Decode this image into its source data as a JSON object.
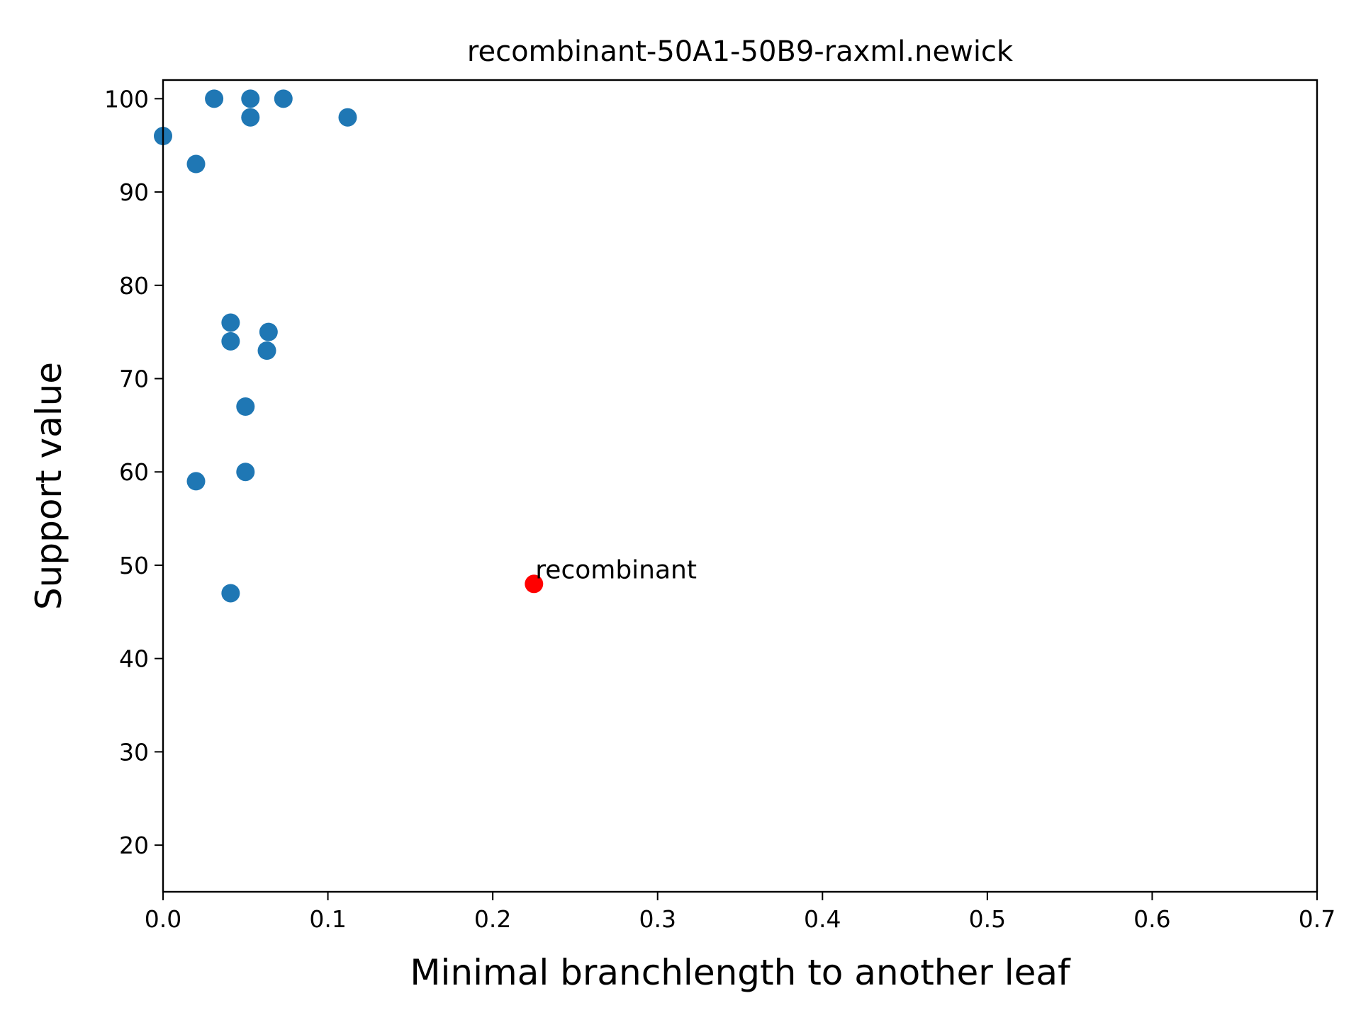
{
  "chart_data": {
    "type": "scatter",
    "title": "recombinant-50A1-50B9-raxml.newick",
    "xlabel": "Minimal branchlength to another leaf",
    "ylabel": "Support value",
    "xlim": [
      0.0,
      0.7
    ],
    "ylim": [
      15,
      102
    ],
    "xticks": [
      0.0,
      0.1,
      0.2,
      0.3,
      0.4,
      0.5,
      0.6,
      0.7
    ],
    "xtick_labels": [
      "0.0",
      "0.1",
      "0.2",
      "0.3",
      "0.4",
      "0.5",
      "0.6",
      "0.7"
    ],
    "yticks": [
      20,
      30,
      40,
      50,
      60,
      70,
      80,
      90,
      100
    ],
    "ytick_labels": [
      "20",
      "30",
      "40",
      "50",
      "60",
      "70",
      "80",
      "90",
      "100"
    ],
    "grid": false,
    "series": [
      {
        "color": "#1f77b4",
        "points": [
          {
            "x": 0.0,
            "y": 96
          },
          {
            "x": 0.02,
            "y": 93
          },
          {
            "x": 0.031,
            "y": 100
          },
          {
            "x": 0.053,
            "y": 100
          },
          {
            "x": 0.053,
            "y": 98
          },
          {
            "x": 0.073,
            "y": 100
          },
          {
            "x": 0.112,
            "y": 98
          },
          {
            "x": 0.041,
            "y": 76
          },
          {
            "x": 0.041,
            "y": 74
          },
          {
            "x": 0.064,
            "y": 75
          },
          {
            "x": 0.063,
            "y": 73
          },
          {
            "x": 0.05,
            "y": 67
          },
          {
            "x": 0.05,
            "y": 60
          },
          {
            "x": 0.02,
            "y": 59
          },
          {
            "x": 0.041,
            "y": 47
          }
        ]
      },
      {
        "color": "#ff0000",
        "points": [
          {
            "x": 0.225,
            "y": 48,
            "label": "recombinant"
          }
        ]
      }
    ]
  }
}
